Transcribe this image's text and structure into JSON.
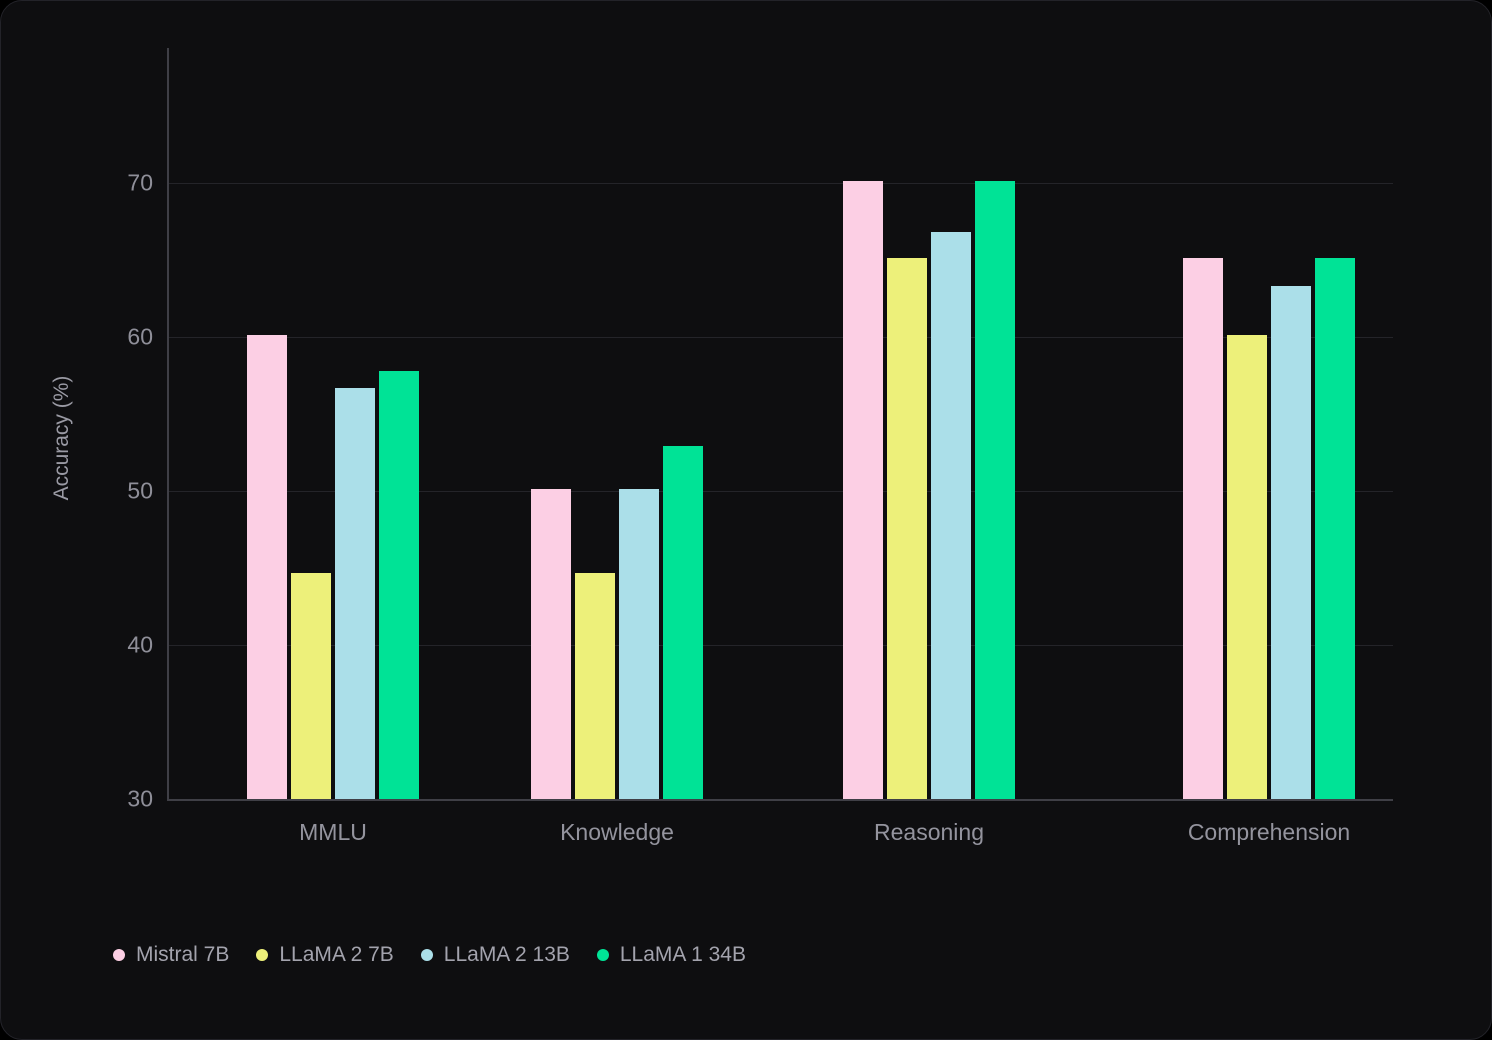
{
  "chart_data": {
    "type": "bar",
    "ylabel": "Accuracy (%)",
    "categories": [
      "MMLU",
      "Knowledge",
      "Reasoning",
      "Comprehension"
    ],
    "series": [
      {
        "name": "Mistral 7B",
        "color": "#FCCFE4",
        "values": [
          60.1,
          50.1,
          70.1,
          65.1
        ]
      },
      {
        "name": "LLaMA 2 7B",
        "color": "#EDF07A",
        "values": [
          44.7,
          44.7,
          65.1,
          60.1
        ]
      },
      {
        "name": "LLaMA 2 13B",
        "color": "#ABDFE9",
        "values": [
          56.7,
          50.1,
          66.8,
          63.3
        ]
      },
      {
        "name": "LLaMA 1 34B",
        "color": "#00E396",
        "values": [
          57.8,
          52.9,
          70.1,
          65.1
        ]
      }
    ],
    "yticks": [
      30,
      40,
      50,
      60,
      70
    ],
    "ylim": [
      30,
      78.8
    ],
    "grid": "horizontal",
    "legend_position": "bottom-left"
  }
}
